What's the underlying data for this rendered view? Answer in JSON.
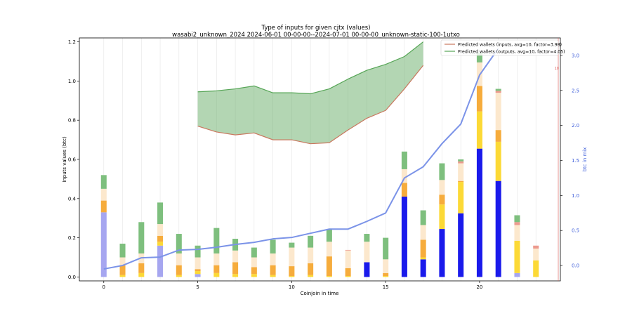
{
  "chart_data": {
    "type": "bar",
    "title": "Type of inputs for given cjtx (values)",
    "subtitle": "wasabi2_unknown_2024 2024-06-01 00-00-00--2024-07-01 00-00-00_unknown-static-100-1utxo",
    "xlabel": "Coinjoin in time",
    "ylabel": "Inputs values (btc)",
    "y2label": "btc in mix",
    "xlim": [
      -1.3,
      24.3
    ],
    "ylim": [
      -0.02,
      1.22
    ],
    "y2lim": [
      -0.22,
      3.25
    ],
    "xticks": [
      0,
      5,
      10,
      15,
      20
    ],
    "yticks": [
      0.0,
      0.2,
      0.4,
      0.6,
      0.8,
      1.0,
      1.2
    ],
    "y2ticks": [
      0.0,
      0.5,
      1.0,
      1.5,
      2.0,
      2.5,
      3.0
    ],
    "grid": "vertical",
    "legend_position": "top-right",
    "legend": [
      {
        "label": "Predicted wallets (inputs, avg=10, factor=3.98)",
        "color": "#c9775e"
      },
      {
        "label": "Predicted wallets (outputs, avg=10, factor=4.05)",
        "color": "#56a556"
      }
    ],
    "right_axis_minor_label": "10",
    "stack_colors": {
      "blue": "#1a1aeb",
      "lightblue": "#a6a6f0",
      "gold": "#fcd936",
      "orange": "#f6ac3c",
      "cream": "#fce8cd",
      "salmon": "#ec9a8e",
      "green": "#7ebf7e"
    },
    "stacks": [
      [
        [
          "lightblue",
          0.33
        ],
        [
          "orange",
          0.06
        ],
        [
          "cream",
          0.06
        ],
        [
          "green",
          0.07
        ]
      ],
      [
        [
          "gold",
          0.01
        ],
        [
          "orange",
          0.05
        ],
        [
          "cream",
          0.04
        ],
        [
          "green",
          0.07
        ]
      ],
      [
        [
          "gold",
          0.02
        ],
        [
          "orange",
          0.05
        ],
        [
          "cream",
          0.05
        ],
        [
          "green",
          0.16
        ]
      ],
      [
        [
          "lightblue",
          0.16
        ],
        [
          "gold",
          0.02
        ],
        [
          "orange",
          0.03
        ],
        [
          "cream",
          0.06
        ],
        [
          "green",
          0.11
        ]
      ],
      [
        [
          "gold",
          0.01
        ],
        [
          "orange",
          0.05
        ],
        [
          "cream",
          0.06
        ],
        [
          "green",
          0.1
        ]
      ],
      [
        [
          "lightblue",
          0.015
        ],
        [
          "gold",
          0.015
        ],
        [
          "orange",
          0.01
        ],
        [
          "cream",
          0.06
        ],
        [
          "green",
          0.06
        ]
      ],
      [
        [
          "gold",
          0.02
        ],
        [
          "orange",
          0.04
        ],
        [
          "cream",
          0.06
        ],
        [
          "green",
          0.13
        ]
      ],
      [
        [
          "gold",
          0.015
        ],
        [
          "orange",
          0.06
        ],
        [
          "cream",
          0.06
        ],
        [
          "green",
          0.06
        ]
      ],
      [
        [
          "gold",
          0.015
        ],
        [
          "orange",
          0.035
        ],
        [
          "cream",
          0.05
        ],
        [
          "green",
          0.05
        ]
      ],
      [
        [
          "gold",
          0.01
        ],
        [
          "orange",
          0.05
        ],
        [
          "cream",
          0.06
        ],
        [
          "green",
          0.07
        ]
      ],
      [
        [
          "gold",
          0.005
        ],
        [
          "orange",
          0.05
        ],
        [
          "cream",
          0.095
        ],
        [
          "green",
          0.025
        ]
      ],
      [
        [
          "gold",
          0.01
        ],
        [
          "orange",
          0.06
        ],
        [
          "cream",
          0.08
        ],
        [
          "green",
          0.06
        ]
      ],
      [
        [
          "gold",
          0.005
        ],
        [
          "orange",
          0.1
        ],
        [
          "cream",
          0.075
        ],
        [
          "green",
          0.065
        ]
      ],
      [
        [
          "gold",
          0.005
        ],
        [
          "orange",
          0.04
        ],
        [
          "cream",
          0.09
        ],
        [
          "salmon",
          0.003
        ]
      ],
      [
        [
          "blue",
          0.075
        ],
        [
          "cream",
          0.105
        ],
        [
          "green",
          0.04
        ]
      ],
      [
        [
          "gold",
          0.005
        ],
        [
          "orange",
          0.015
        ],
        [
          "cream",
          0.07
        ],
        [
          "green",
          0.11
        ]
      ],
      [
        [
          "blue",
          0.41
        ],
        [
          "orange",
          0.07
        ],
        [
          "cream",
          0.07
        ],
        [
          "green",
          0.09
        ]
      ],
      [
        [
          "blue",
          0.09
        ],
        [
          "gold",
          0.01
        ],
        [
          "orange",
          0.09
        ],
        [
          "cream",
          0.075
        ],
        [
          "green",
          0.075
        ]
      ],
      [
        [
          "blue",
          0.245
        ],
        [
          "gold",
          0.125
        ],
        [
          "orange",
          0.05
        ],
        [
          "cream",
          0.075
        ],
        [
          "green",
          0.085
        ]
      ],
      [
        [
          "blue",
          0.325
        ],
        [
          "gold",
          0.16
        ],
        [
          "orange",
          0.005
        ],
        [
          "cream",
          0.09
        ],
        [
          "salmon",
          0.01
        ],
        [
          "green",
          0.01
        ]
      ],
      [
        [
          "blue",
          0.655
        ],
        [
          "gold",
          0.19
        ],
        [
          "orange",
          0.13
        ],
        [
          "cream",
          0.12
        ],
        [
          "green",
          0.05
        ]
      ],
      [
        [
          "blue",
          0.49
        ],
        [
          "gold",
          0.2
        ],
        [
          "orange",
          0.06
        ],
        [
          "cream",
          0.19
        ],
        [
          "salmon",
          0.01
        ],
        [
          "green",
          0.01
        ]
      ],
      [
        [
          "lightblue",
          0.02
        ],
        [
          "gold",
          0.165
        ],
        [
          "cream",
          0.08
        ],
        [
          "salmon",
          0.015
        ],
        [
          "green",
          0.035
        ]
      ],
      [
        [
          "gold",
          0.085
        ],
        [
          "cream",
          0.06
        ],
        [
          "salmon",
          0.015
        ]
      ]
    ],
    "btc_in_mix": {
      "x": [
        0,
        1,
        2,
        3,
        4,
        5,
        6,
        7,
        8,
        9,
        10,
        11,
        12,
        13,
        14,
        15,
        16,
        17,
        18,
        19,
        20,
        21
      ],
      "values": [
        -0.05,
        0.0,
        0.11,
        0.12,
        0.22,
        0.23,
        0.26,
        0.3,
        0.33,
        0.38,
        0.4,
        0.46,
        0.52,
        0.52,
        0.63,
        0.75,
        1.25,
        1.41,
        1.74,
        2.02,
        2.72,
        3.1
      ]
    },
    "predicted_inputs": {
      "x": [
        5,
        6,
        7,
        8,
        9,
        10,
        11,
        12,
        13,
        14,
        15,
        16,
        17
      ],
      "values": [
        0.77,
        0.74,
        0.725,
        0.735,
        0.7,
        0.7,
        0.68,
        0.685,
        0.75,
        0.81,
        0.85,
        0.96,
        1.08
      ]
    },
    "predicted_outputs": {
      "x": [
        5,
        6,
        7,
        8,
        9,
        10,
        11,
        12,
        13,
        14,
        15,
        16,
        17
      ],
      "values": [
        0.945,
        0.95,
        0.96,
        0.975,
        0.94,
        0.94,
        0.935,
        0.96,
        1.01,
        1.055,
        1.085,
        1.125,
        1.2
      ]
    }
  }
}
